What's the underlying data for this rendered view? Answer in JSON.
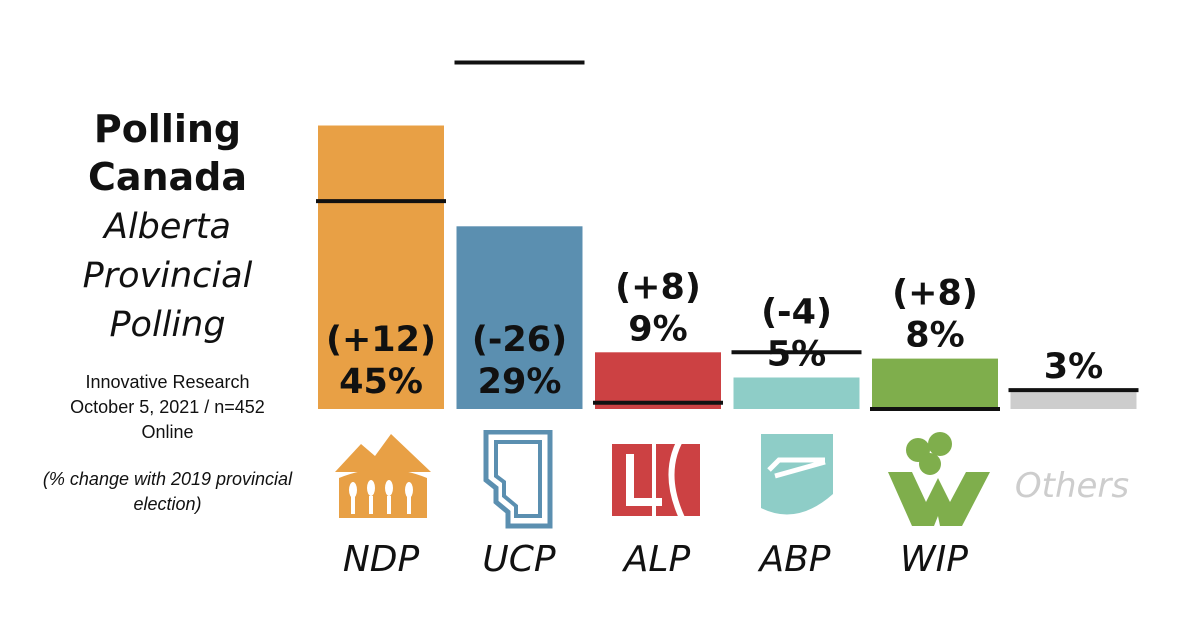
{
  "brand": "Polling Canada",
  "subtitle": "Alberta Provincial Polling",
  "source_lines": [
    "Innovative Research",
    "October 5, 2021 / n=452",
    "Online"
  ],
  "note": "(% change with 2019 provincial election)",
  "chart_data": {
    "type": "bar",
    "categories": [
      "NDP",
      "UCP",
      "ALP",
      "ABP",
      "WIP",
      "Others"
    ],
    "values": [
      45,
      29,
      9,
      5,
      8,
      3
    ],
    "value_labels": [
      "45%",
      "29%",
      "9%",
      "5%",
      "8%",
      "3%"
    ],
    "previous_election": [
      33,
      55,
      1,
      9,
      0,
      3
    ],
    "changes": [
      "(+12)",
      "(-26)",
      "(+8)",
      "(-4)",
      "(+8)",
      ""
    ],
    "colors": [
      "#e8a045",
      "#5b8fb0",
      "#cc4143",
      "#8ecdc7",
      "#7fae4c",
      "#cdcdcd"
    ],
    "ylim": [
      0,
      60
    ]
  },
  "logos": {
    "NDP": "ndp-logo",
    "UCP": "alberta-outline-logo",
    "ALP": "alp-logo",
    "ABP": "abp-shield-logo",
    "WIP": "wip-logo"
  }
}
